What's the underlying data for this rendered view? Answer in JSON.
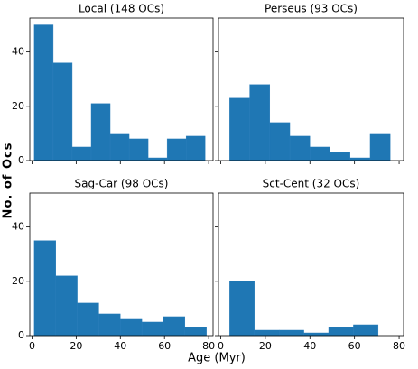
{
  "figure": {
    "xlabel": "Age (Myr)",
    "ylabel": "No. of Ocs"
  },
  "chart_data": [
    {
      "type": "histogram",
      "title": "Local (148 OCs)",
      "color": "#1f77b4",
      "bins": [
        1,
        9.6,
        18.2,
        26.8,
        35.4,
        44,
        52.6,
        61.2,
        69.8,
        78.4
      ],
      "counts": [
        50,
        36,
        5,
        21,
        10,
        8,
        1,
        8,
        9
      ],
      "xlim": [
        -1,
        82
      ],
      "ylim": [
        0,
        52.5
      ],
      "xticks": [
        0,
        20,
        40,
        60,
        80
      ],
      "yticks": [
        0,
        20,
        40
      ],
      "show_xticklabels": false,
      "show_yticklabels": true
    },
    {
      "type": "histogram",
      "title": "Perseus (93 OCs)",
      "color": "#1f77b4",
      "bins": [
        4,
        13,
        22,
        31,
        40,
        49,
        58,
        67,
        76
      ],
      "counts": [
        23,
        28,
        14,
        9,
        5,
        3,
        1,
        10
      ],
      "xlim": [
        -1,
        82
      ],
      "ylim": [
        0,
        52.5
      ],
      "xticks": [
        0,
        20,
        40,
        60,
        80
      ],
      "yticks": [
        0,
        20,
        40
      ],
      "show_xticklabels": false,
      "show_yticklabels": false
    },
    {
      "type": "histogram",
      "title": "Sag-Car (98 OCs)",
      "color": "#1f77b4",
      "bins": [
        1,
        10.75,
        20.5,
        30.25,
        40,
        49.75,
        59.5,
        69.25,
        79
      ],
      "counts": [
        35,
        22,
        12,
        8,
        6,
        5,
        7,
        3
      ],
      "xlim": [
        -1,
        82
      ],
      "ylim": [
        0,
        52.5
      ],
      "xticks": [
        0,
        20,
        40,
        60,
        80
      ],
      "yticks": [
        0,
        20,
        40
      ],
      "show_xticklabels": true,
      "show_yticklabels": true
    },
    {
      "type": "histogram",
      "title": "Sct-Cent (32 OCs)",
      "color": "#1f77b4",
      "bins": [
        4,
        15.1,
        26.2,
        37.3,
        48.4,
        59.5,
        70.6
      ],
      "counts": [
        20,
        2,
        2,
        1,
        3,
        4
      ],
      "xlim": [
        -1,
        82
      ],
      "ylim": [
        0,
        52.5
      ],
      "xticks": [
        0,
        20,
        40,
        60,
        80
      ],
      "yticks": [
        0,
        20,
        40
      ],
      "show_xticklabels": true,
      "show_yticklabels": false
    }
  ]
}
